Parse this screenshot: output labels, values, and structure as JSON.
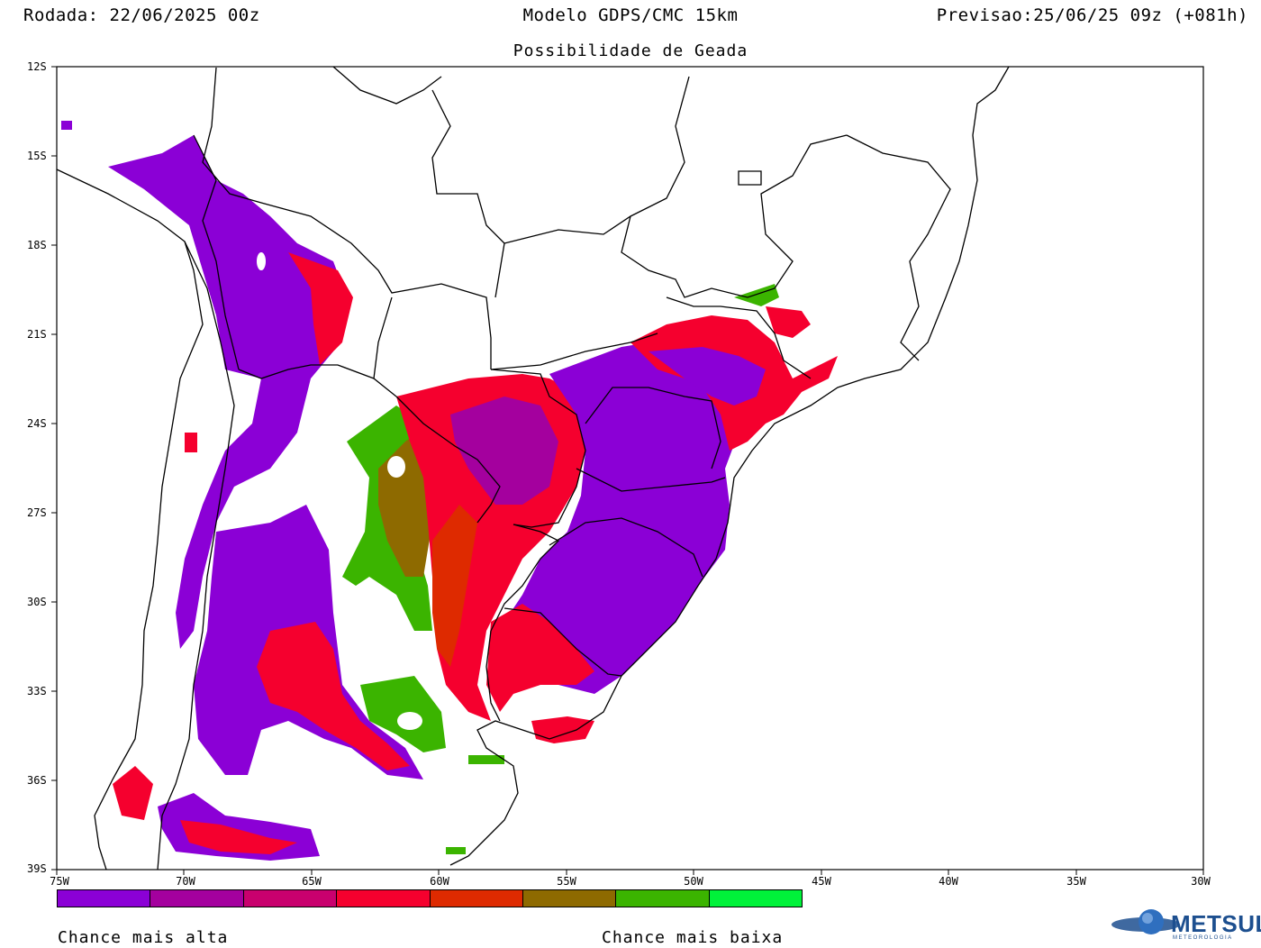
{
  "header": {
    "run": "Rodada: 22/06/2025 00z",
    "model": "Modelo GDPS/CMC 15km",
    "valid": "Previsao:25/06/25 09z (+081h)",
    "subtitle": "Possibilidade de Geada"
  },
  "axes": {
    "lat_labels": [
      "12S",
      "15S",
      "18S",
      "21S",
      "24S",
      "27S",
      "30S",
      "33S",
      "36S",
      "39S"
    ],
    "lon_labels": [
      "75W",
      "70W",
      "65W",
      "60W",
      "55W",
      "50W",
      "45W",
      "40W",
      "35W",
      "30W"
    ]
  },
  "legend": {
    "colors": [
      "#8b00d6",
      "#a4009e",
      "#c9006e",
      "#f5002e",
      "#de2a00",
      "#8e6a00",
      "#3bb400",
      "#00f23a"
    ],
    "label_high": "Chance mais alta",
    "label_low": "Chance mais baixa"
  },
  "logo": {
    "text": "METSUL",
    "subtext": "METEOROLOGIA"
  },
  "frost_colors": {
    "purple": "#8b00d6",
    "magenta": "#c9006e",
    "red": "#f5002e",
    "orange_red": "#de2a00",
    "olive": "#8e6a00",
    "green": "#3bb400"
  }
}
